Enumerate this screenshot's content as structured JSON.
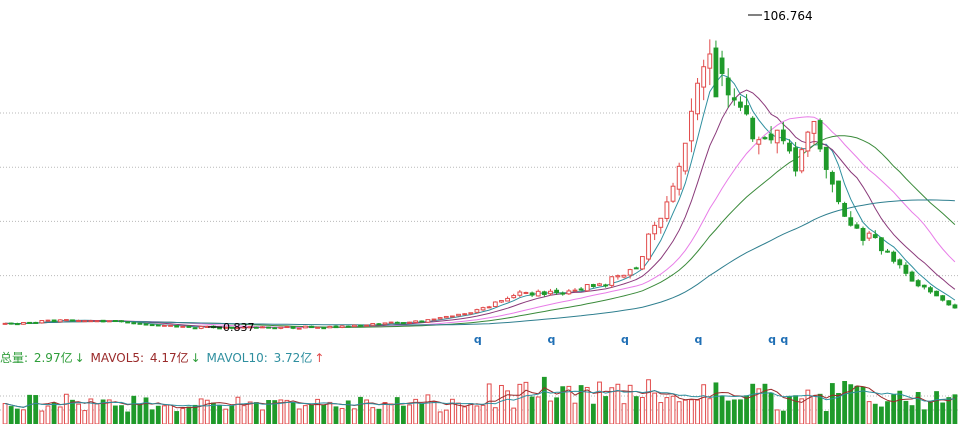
{
  "chart_data": {
    "type": "candlestick",
    "title": "",
    "price_panel": {
      "ylim": [
        -6,
        121
      ],
      "gridlines": [
        20,
        40,
        60,
        80
      ],
      "max_annotation": {
        "label": "106.764",
        "value": 106.764
      },
      "min_annotation": {
        "label": "0.837",
        "value": 0.837
      },
      "marker_label": "q",
      "marker_bar_indices": [
        88,
        102,
        116,
        130,
        144,
        146
      ],
      "ma_colors": [
        "#2f8f9f",
        "#8a3a7a",
        "#e87de8",
        "#3a8a3a",
        "#2f7f8f"
      ]
    },
    "volume_panel": {
      "legend": {
        "total_label": "总量: ",
        "total_value": "2.97亿",
        "total_arrow": "↓",
        "ma5_label": "MAVOL5: ",
        "ma5_value": "4.17亿",
        "ma5_arrow": "↓",
        "ma10_label": "MAVOL10: ",
        "ma10_value": "3.72亿",
        "ma10_arrow": "↑"
      },
      "ylim": [
        0,
        8
      ],
      "gridlines": [
        2,
        4
      ]
    },
    "colors": {
      "up": "#e14b4b",
      "down": "#1f9a2a",
      "grid": "#b9b9b9"
    }
  }
}
